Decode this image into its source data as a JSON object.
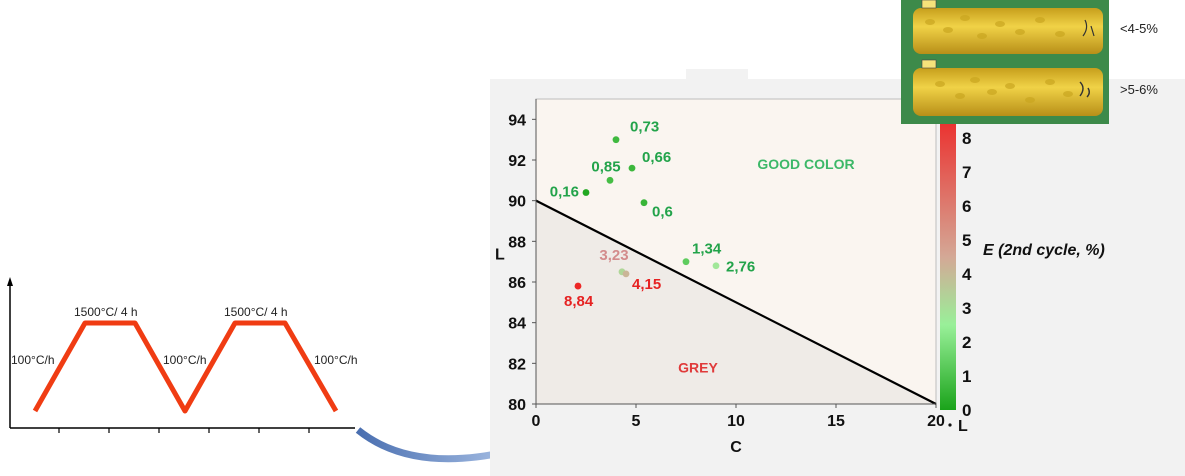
{
  "thermal_cycle": {
    "plateau_labels": [
      "1500°C/ 4 h",
      "1500°C/ 4 h"
    ],
    "rate_labels": [
      "100°C/h",
      "100°C/h",
      "100°C/h"
    ],
    "line_color": "#f03c13"
  },
  "samples": [
    {
      "label": "<4-5%"
    },
    {
      "label": ">5-6%"
    }
  ],
  "chart_data": {
    "type": "scatter",
    "xlabel": "C",
    "ylabel": "L",
    "xlim": [
      0,
      20
    ],
    "ylim": [
      80,
      95
    ],
    "x_ticks": [
      0,
      5,
      10,
      15,
      20
    ],
    "y_ticks": [
      80,
      82,
      84,
      86,
      88,
      90,
      92,
      94
    ],
    "x_tick_labels": [
      "0",
      "5",
      "10",
      "15",
      "20"
    ],
    "y_tick_labels": [
      "80",
      "82",
      "84",
      "86",
      "88",
      "90",
      "92",
      "94"
    ],
    "boundary_line": {
      "from": [
        0,
        90
      ],
      "to": [
        20,
        80
      ],
      "color": "#000000"
    },
    "region_labels": [
      {
        "text": "GOOD COLOR",
        "x": 13.5,
        "y": 91.8,
        "color": "#3cb868"
      },
      {
        "text": "GREY",
        "x": 8.1,
        "y": 81.8,
        "color": "#e03a3a"
      }
    ],
    "points": [
      {
        "x": 4.0,
        "y": 93.0,
        "value": 0.73,
        "label": "0,73"
      },
      {
        "x": 3.7,
        "y": 91.0,
        "value": 0.85,
        "label": "0,85"
      },
      {
        "x": 4.8,
        "y": 91.6,
        "value": 0.66,
        "label": "0,66"
      },
      {
        "x": 2.5,
        "y": 90.4,
        "value": 0.16,
        "label": "0,16"
      },
      {
        "x": 5.4,
        "y": 89.9,
        "value": 0.6,
        "label": "0,6"
      },
      {
        "x": 7.5,
        "y": 87.0,
        "value": 1.34,
        "label": "1,34"
      },
      {
        "x": 9.0,
        "y": 86.8,
        "value": 2.76,
        "label": "2,76"
      },
      {
        "x": 4.3,
        "y": 86.5,
        "value": 3.23,
        "label": "3,23"
      },
      {
        "x": 4.5,
        "y": 86.4,
        "value": 4.15,
        "label": "4,15"
      },
      {
        "x": 2.1,
        "y": 85.8,
        "value": 8.84,
        "label": "8,84"
      }
    ],
    "colorbar": {
      "label": "E (2nd cycle, %)",
      "range": [
        0,
        9
      ],
      "ticks": [
        0,
        1,
        2,
        3,
        4,
        5,
        6,
        7,
        8
      ],
      "tick_labels": [
        "0",
        "1",
        "2",
        "3",
        "4",
        "5",
        "6",
        "7",
        "8"
      ],
      "stops": [
        {
          "value": 0,
          "color": "#1aa31a"
        },
        {
          "value": 2.5,
          "color": "#99f099"
        },
        {
          "value": 4.5,
          "color": "#d4a896"
        },
        {
          "value": 9,
          "color": "#ee2222"
        }
      ]
    },
    "color_legend_axis_label": "L"
  },
  "colors": {
    "plot_background": "#faf5f0",
    "chart_panel": "#f2f2f2",
    "arrow": "#7f9fd6",
    "sample_color": "#d9b82a",
    "sample_bg": "#3d8a4a"
  }
}
